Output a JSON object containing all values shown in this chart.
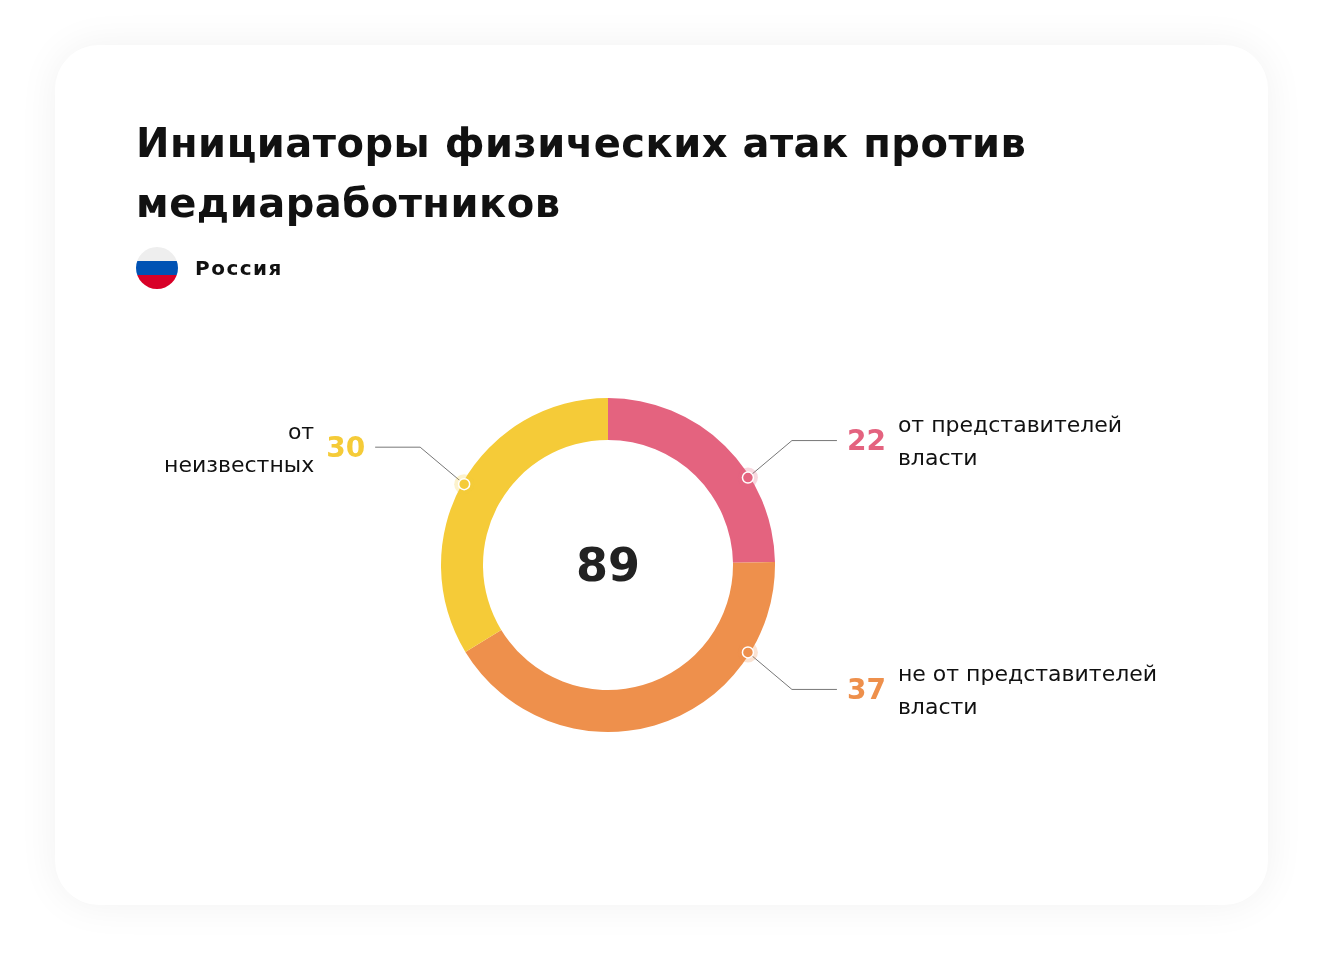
{
  "chart_data": {
    "type": "donut",
    "title": "Инициаторы физических атак против медиаработников",
    "subtitle": "Россия",
    "categories": [
      "от представителей власти",
      "не от представителей власти",
      "от неизвестных"
    ],
    "values": [
      22,
      37,
      30
    ],
    "colors": [
      "#e4637f",
      "#ee904c",
      "#f5cb38"
    ],
    "data_labels": true,
    "totals": [
      "89"
    ]
  }
}
